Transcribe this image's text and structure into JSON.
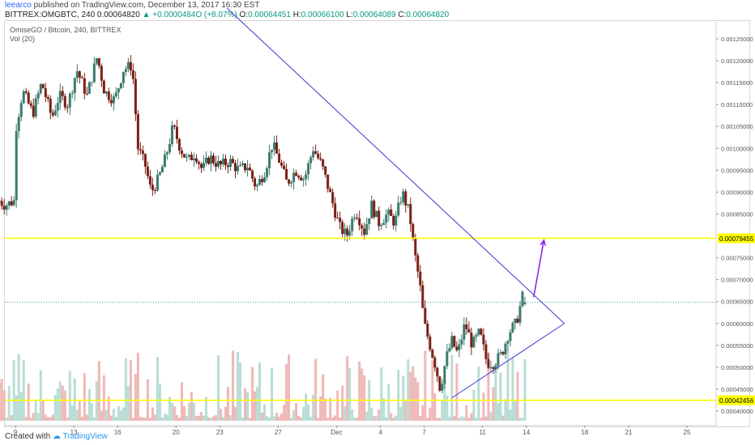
{
  "header": {
    "user": "leearco",
    "published_text": "published on TradingView.com, December 13, 2017 16:30 EST",
    "symbol": "BITTREX:OMGBTC, 240",
    "last": "0.00064820",
    "change": "▲ +0.0000484O (+8.07%)",
    "o_label": "O:",
    "o": "0.00064451",
    "h_label": "H:",
    "h": "0.00066100",
    "l_label": "L:",
    "l": "0.00064089",
    "c_label": "C:",
    "c": "0.00064820"
  },
  "legend": {
    "series_title": "OmiseGO / Bitcoin, 240, BITTREX",
    "volume_title": "Vol (20)"
  },
  "footer": {
    "created_with": "Created with",
    "brand": "TradingView"
  },
  "colors": {
    "up": "#3a7a6e",
    "down": "#7a1f16",
    "vol_up": "#b8ddd4",
    "vol_down": "#efb8b8",
    "trendline": "#3a35d4",
    "arrow": "#8a2be2",
    "hline": "#ffff00",
    "dotted": "#4a9b8e"
  },
  "chart_data": {
    "type": "candlestick",
    "title": "OmiseGO / Bitcoin, 240, BITTREX",
    "x_ticks": [
      "9",
      "13",
      "16",
      "20",
      "23",
      "27",
      "Dec",
      "4",
      "7",
      "11",
      "14",
      "18",
      "21",
      "25"
    ],
    "x_tick_days": [
      9,
      13,
      16,
      20,
      23,
      27,
      31,
      34,
      37,
      41,
      44,
      48,
      51,
      55
    ],
    "x_tick_note": "day index counted from Nov 1 (Dec 1 = 31)",
    "y_ticks": [
      "0.00040000",
      "0.00045000",
      "0.00050000",
      "0.00055000",
      "0.00060000",
      "0.00065000",
      "0.00070000",
      "0.00075000",
      "0.00085000",
      "0.00090000",
      "0.00095000",
      "0.00100000",
      "0.00105000",
      "0.00110000",
      "0.00115000",
      "0.00120000",
      "0.00125000"
    ],
    "ylim": [
      0.000386,
      0.0013
    ],
    "horizontal_levels": [
      {
        "value": 0.00079455,
        "label": "0.00079455"
      },
      {
        "value": 0.00042456,
        "label": "0.00042456"
      }
    ],
    "last_price": 0.0006482,
    "trendlines": [
      {
        "name": "descending",
        "from": [
          23.5,
          0.00132
        ],
        "to": [
          46.6,
          0.0006
        ]
      },
      {
        "name": "ascending",
        "from": [
          38.9,
          0.00043
        ],
        "to": [
          46.6,
          0.0006
        ]
      }
    ],
    "projection_arrow": {
      "from": [
        44.5,
        0.00066
      ],
      "to": [
        45.2,
        0.00079
      ]
    },
    "path": [
      [
        7.9,
        0.00088
      ],
      [
        8.3,
        0.00087
      ],
      [
        8.9,
        0.00088
      ],
      [
        9.0,
        0.00104
      ],
      [
        9.5,
        0.00113
      ],
      [
        10.2,
        0.00108
      ],
      [
        10.8,
        0.00115
      ],
      [
        11.5,
        0.00107
      ],
      [
        12.0,
        0.00112
      ],
      [
        12.6,
        0.0011
      ],
      [
        13.2,
        0.00118
      ],
      [
        13.9,
        0.00112
      ],
      [
        14.6,
        0.00121
      ],
      [
        15.1,
        0.00113
      ],
      [
        15.8,
        0.00111
      ],
      [
        16.4,
        0.00118
      ],
      [
        17.0,
        0.00119
      ],
      [
        17.4,
        0.001
      ],
      [
        17.9,
        0.00096
      ],
      [
        18.3,
        0.0009
      ],
      [
        18.8,
        0.00093
      ],
      [
        19.3,
        0.00098
      ],
      [
        19.8,
        0.00105
      ],
      [
        20.3,
        0.001
      ],
      [
        20.8,
        0.00097
      ],
      [
        21.3,
        0.00099
      ],
      [
        21.8,
        0.00095
      ],
      [
        22.3,
        0.00098
      ],
      [
        23.0,
        0.00096
      ],
      [
        23.7,
        0.00097
      ],
      [
        24.3,
        0.00095
      ],
      [
        24.9,
        0.00096
      ],
      [
        25.5,
        0.00091
      ],
      [
        26.1,
        0.00095
      ],
      [
        26.6,
        0.00101
      ],
      [
        27.1,
        0.00097
      ],
      [
        27.6,
        0.00092
      ],
      [
        28.2,
        0.00095
      ],
      [
        28.8,
        0.00093
      ],
      [
        29.4,
        0.001
      ],
      [
        30.0,
        0.00096
      ],
      [
        30.6,
        0.00089
      ],
      [
        31.2,
        0.00082
      ],
      [
        31.7,
        0.0008
      ],
      [
        32.3,
        0.00086
      ],
      [
        32.9,
        0.00081
      ],
      [
        33.4,
        0.00087
      ],
      [
        33.9,
        0.00083
      ],
      [
        34.5,
        0.00085
      ],
      [
        35.0,
        0.00083
      ],
      [
        35.5,
        0.0009
      ],
      [
        36.0,
        0.00085
      ],
      [
        36.3,
        0.00077
      ],
      [
        36.7,
        0.00069
      ],
      [
        37.0,
        0.0006
      ],
      [
        37.4,
        0.00055
      ],
      [
        37.8,
        0.0005
      ],
      [
        38.1,
        0.00045
      ],
      [
        38.5,
        0.00052
      ],
      [
        38.9,
        0.00056
      ],
      [
        39.3,
        0.00053
      ],
      [
        39.8,
        0.0006
      ],
      [
        40.3,
        0.00055
      ],
      [
        40.8,
        0.00058
      ],
      [
        41.3,
        0.00051
      ],
      [
        41.8,
        0.00051
      ],
      [
        42.3,
        0.00053
      ],
      [
        42.8,
        0.00058
      ],
      [
        43.3,
        0.0006
      ],
      [
        43.8,
        0.00067
      ],
      [
        44.0,
        0.00064
      ]
    ]
  }
}
